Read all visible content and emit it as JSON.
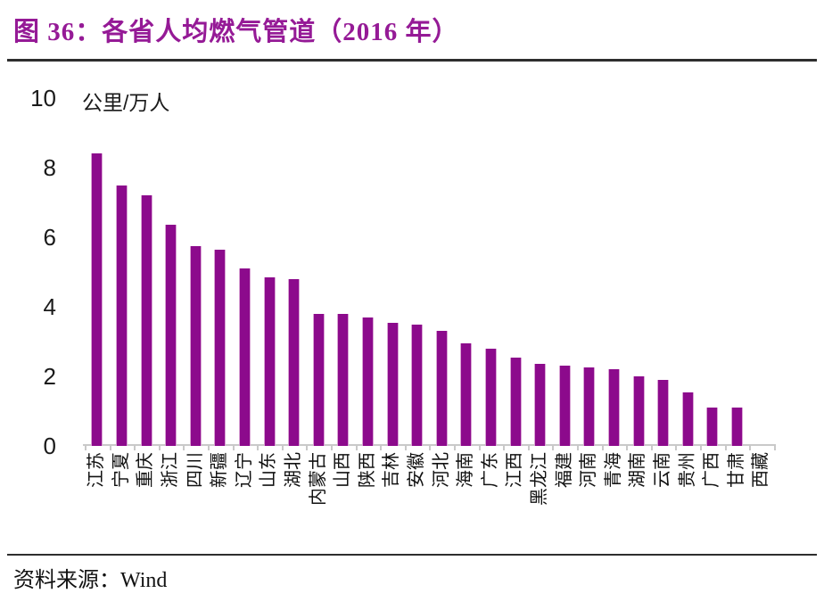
{
  "figure": {
    "title": "图 36：各省人均燃气管道（2016 年）",
    "source_label": "资料来源：Wind"
  },
  "colors": {
    "title": "#951A96",
    "bar": "#8C0A8C",
    "axis": "#c9c9c9"
  },
  "chart_data": {
    "type": "bar",
    "title": "图 36：各省人均燃气管道（2016 年）",
    "unit_label": "公里/万人",
    "xlabel": "",
    "ylabel": "公里/万人",
    "ylim": [
      0,
      10
    ],
    "yticks": [
      0,
      2,
      4,
      6,
      8,
      10
    ],
    "grid": false,
    "legend": "none",
    "categories": [
      "江苏",
      "宁夏",
      "重庆",
      "浙江",
      "四川",
      "新疆",
      "辽宁",
      "山东",
      "湖北",
      "内蒙古",
      "山西",
      "陕西",
      "吉林",
      "安徽",
      "河北",
      "海南",
      "广东",
      "江西",
      "黑龙江",
      "福建",
      "河南",
      "青海",
      "湖南",
      "云南",
      "贵州",
      "广西",
      "甘肃",
      "西藏"
    ],
    "values": [
      8.4,
      7.5,
      7.2,
      6.35,
      5.75,
      5.65,
      5.1,
      4.85,
      4.8,
      3.8,
      3.8,
      3.7,
      3.55,
      3.5,
      3.3,
      2.95,
      2.8,
      2.55,
      2.35,
      2.3,
      2.25,
      2.2,
      2.0,
      1.9,
      1.55,
      1.1,
      1.1,
      0
    ],
    "source": "Wind"
  }
}
